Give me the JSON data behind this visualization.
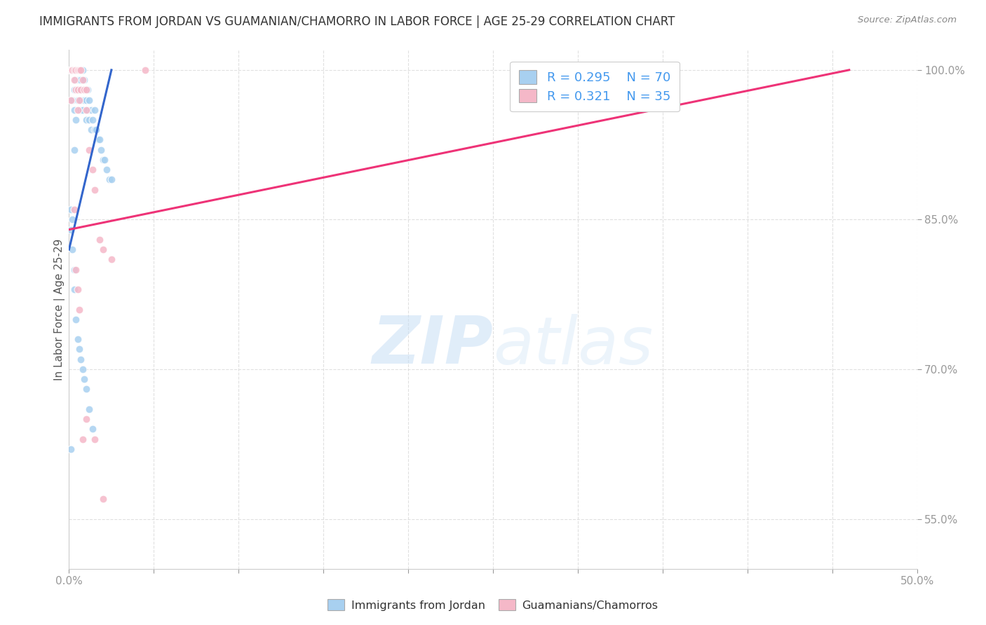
{
  "title": "IMMIGRANTS FROM JORDAN VS GUAMANIAN/CHAMORRO IN LABOR FORCE | AGE 25-29 CORRELATION CHART",
  "source": "Source: ZipAtlas.com",
  "ylabel": "In Labor Force | Age 25-29",
  "legend_blue_R": "0.295",
  "legend_blue_N": "70",
  "legend_pink_R": "0.321",
  "legend_pink_N": "35",
  "legend_label_blue": "Immigrants from Jordan",
  "legend_label_pink": "Guamanians/Chamorros",
  "blue_color": "#a8d0f0",
  "pink_color": "#f5b8c8",
  "trendline_blue": "#3366cc",
  "trendline_pink": "#ee3377",
  "watermark_zip": "ZIP",
  "watermark_atlas": "atlas",
  "background_color": "#ffffff",
  "grid_color": "#dddddd",
  "axis_label_color": "#4499ee",
  "title_color": "#333333",
  "xmin": 0.0,
  "xmax": 0.5,
  "ymin": 0.5,
  "ymax": 1.02,
  "yticks": [
    0.55,
    0.7,
    0.85,
    1.0
  ],
  "ytick_labels": [
    "55.0%",
    "70.0%",
    "85.0%",
    "100.0%"
  ],
  "xtick_left_label": "0.0%",
  "xtick_right_label": "50.0%",
  "blue_x": [
    0.001,
    0.001,
    0.001,
    0.002,
    0.002,
    0.002,
    0.002,
    0.003,
    0.003,
    0.003,
    0.003,
    0.003,
    0.004,
    0.004,
    0.004,
    0.004,
    0.005,
    0.005,
    0.005,
    0.005,
    0.006,
    0.006,
    0.006,
    0.006,
    0.007,
    0.007,
    0.007,
    0.007,
    0.008,
    0.008,
    0.008,
    0.009,
    0.009,
    0.01,
    0.01,
    0.01,
    0.011,
    0.011,
    0.012,
    0.012,
    0.013,
    0.013,
    0.014,
    0.015,
    0.015,
    0.016,
    0.017,
    0.018,
    0.019,
    0.02,
    0.021,
    0.022,
    0.024,
    0.025,
    0.001,
    0.001,
    0.002,
    0.002,
    0.003,
    0.003,
    0.004,
    0.005,
    0.006,
    0.007,
    0.008,
    0.009,
    0.01,
    0.012,
    0.014,
    0.001
  ],
  "blue_y": [
    1.0,
    1.0,
    1.0,
    1.0,
    1.0,
    1.0,
    0.97,
    1.0,
    1.0,
    0.98,
    0.96,
    0.92,
    1.0,
    1.0,
    0.99,
    0.95,
    1.0,
    1.0,
    0.99,
    0.97,
    1.0,
    0.99,
    0.98,
    0.96,
    1.0,
    0.99,
    0.97,
    0.96,
    1.0,
    0.98,
    0.96,
    0.99,
    0.97,
    0.98,
    0.97,
    0.95,
    0.98,
    0.96,
    0.97,
    0.95,
    0.96,
    0.94,
    0.95,
    0.96,
    0.94,
    0.94,
    0.93,
    0.93,
    0.92,
    0.91,
    0.91,
    0.9,
    0.89,
    0.89,
    0.86,
    0.84,
    0.85,
    0.82,
    0.8,
    0.78,
    0.75,
    0.73,
    0.72,
    0.71,
    0.7,
    0.69,
    0.68,
    0.66,
    0.64,
    0.62
  ],
  "pink_x": [
    0.001,
    0.001,
    0.001,
    0.002,
    0.002,
    0.003,
    0.003,
    0.004,
    0.004,
    0.005,
    0.005,
    0.005,
    0.006,
    0.006,
    0.007,
    0.007,
    0.008,
    0.009,
    0.01,
    0.01,
    0.012,
    0.014,
    0.015,
    0.018,
    0.02,
    0.025,
    0.003,
    0.004,
    0.005,
    0.006,
    0.008,
    0.01,
    0.015,
    0.02,
    0.045
  ],
  "pink_y": [
    1.0,
    1.0,
    0.97,
    1.0,
    1.0,
    1.0,
    0.99,
    1.0,
    0.98,
    1.0,
    0.98,
    0.96,
    1.0,
    0.97,
    1.0,
    0.98,
    0.99,
    0.98,
    0.98,
    0.96,
    0.92,
    0.9,
    0.88,
    0.83,
    0.82,
    0.81,
    0.86,
    0.8,
    0.78,
    0.76,
    0.63,
    0.65,
    0.63,
    0.57,
    1.0
  ],
  "blue_trend_x0": 0.0,
  "blue_trend_x1": 0.025,
  "blue_trend_y0": 0.82,
  "blue_trend_y1": 1.0,
  "pink_trend_x0": 0.0,
  "pink_trend_x1": 0.46,
  "pink_trend_y0": 0.84,
  "pink_trend_y1": 1.0
}
